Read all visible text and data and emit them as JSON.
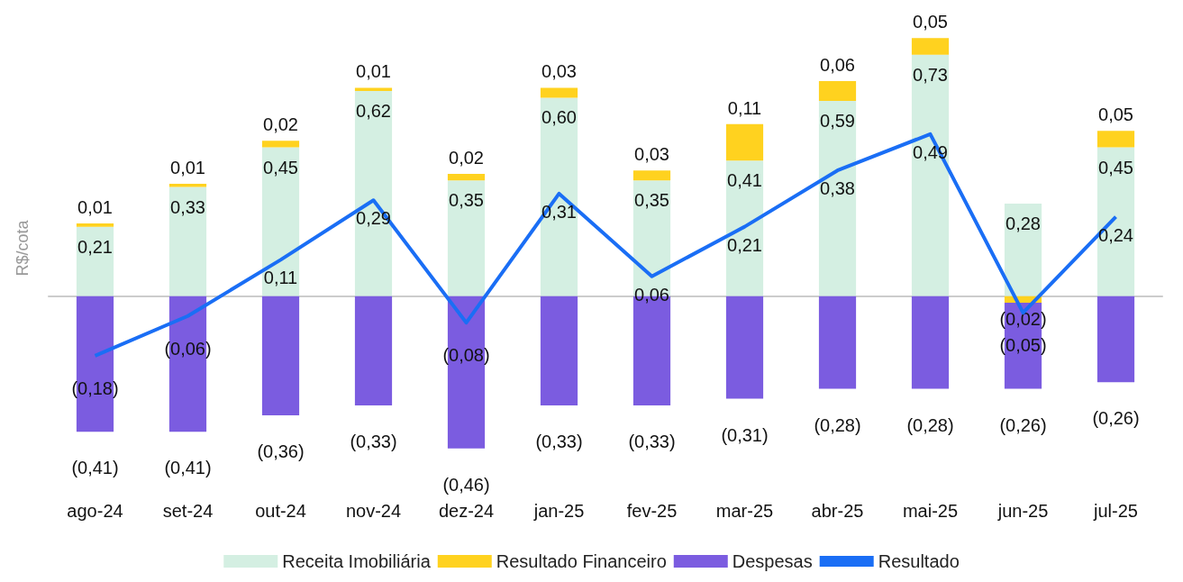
{
  "chart_data": {
    "type": "bar",
    "stacked": true,
    "ylabel": "R$/cota",
    "legend": "bottom",
    "grid": false,
    "marker": "none",
    "categories": [
      "ago-24",
      "set-24",
      "out-24",
      "nov-24",
      "dez-24",
      "jan-25",
      "fev-25",
      "mar-25",
      "abr-25",
      "mai-25",
      "jun-25",
      "jul-25"
    ],
    "series": [
      {
        "name": "Receita Imobiliária",
        "color": "#d4efe2",
        "values": [
          0.21,
          0.33,
          0.45,
          0.62,
          0.35,
          0.6,
          0.35,
          0.41,
          0.59,
          0.73,
          0.28,
          0.45
        ],
        "value_labels": [
          "0,21",
          "0,33",
          "0,45",
          "0,62",
          "0,35",
          "0,60",
          "0,35",
          "0,41",
          "0,59",
          "0,73",
          "0,28",
          "0,45"
        ]
      },
      {
        "name": "Resultado Financeiro",
        "color": "#ffd21f",
        "values": [
          0.01,
          0.01,
          0.02,
          0.01,
          0.02,
          0.03,
          0.03,
          0.11,
          0.06,
          0.05,
          -0.02,
          0.05
        ],
        "value_labels": [
          "0,01",
          "0,01",
          "0,02",
          "0,01",
          "0,02",
          "0,03",
          "0,03",
          "0,11",
          "0,06",
          "0,05",
          "(0,02)",
          "0,05"
        ]
      },
      {
        "name": "Despesas",
        "color": "#7b5ce0",
        "values": [
          -0.41,
          -0.41,
          -0.36,
          -0.33,
          -0.46,
          -0.33,
          -0.33,
          -0.31,
          -0.28,
          -0.28,
          -0.26,
          -0.26
        ],
        "value_labels": [
          "(0,41)",
          "(0,41)",
          "(0,36)",
          "(0,33)",
          "(0,46)",
          "(0,33)",
          "(0,33)",
          "(0,31)",
          "(0,28)",
          "(0,28)",
          "(0,26)",
          "(0,26)"
        ]
      },
      {
        "name": "Resultado",
        "type": "line",
        "color": "#1a6ef5",
        "values": [
          -0.18,
          -0.06,
          0.11,
          0.29,
          -0.08,
          0.31,
          0.06,
          0.21,
          0.38,
          0.49,
          -0.05,
          0.24
        ],
        "value_labels": [
          "(0,18)",
          "(0,06)",
          "0,11",
          "0,29",
          "(0,08)",
          "0,31",
          "0,06",
          "0,21",
          "0,38",
          "0,49",
          "(0,05)",
          "0,24"
        ]
      }
    ]
  }
}
